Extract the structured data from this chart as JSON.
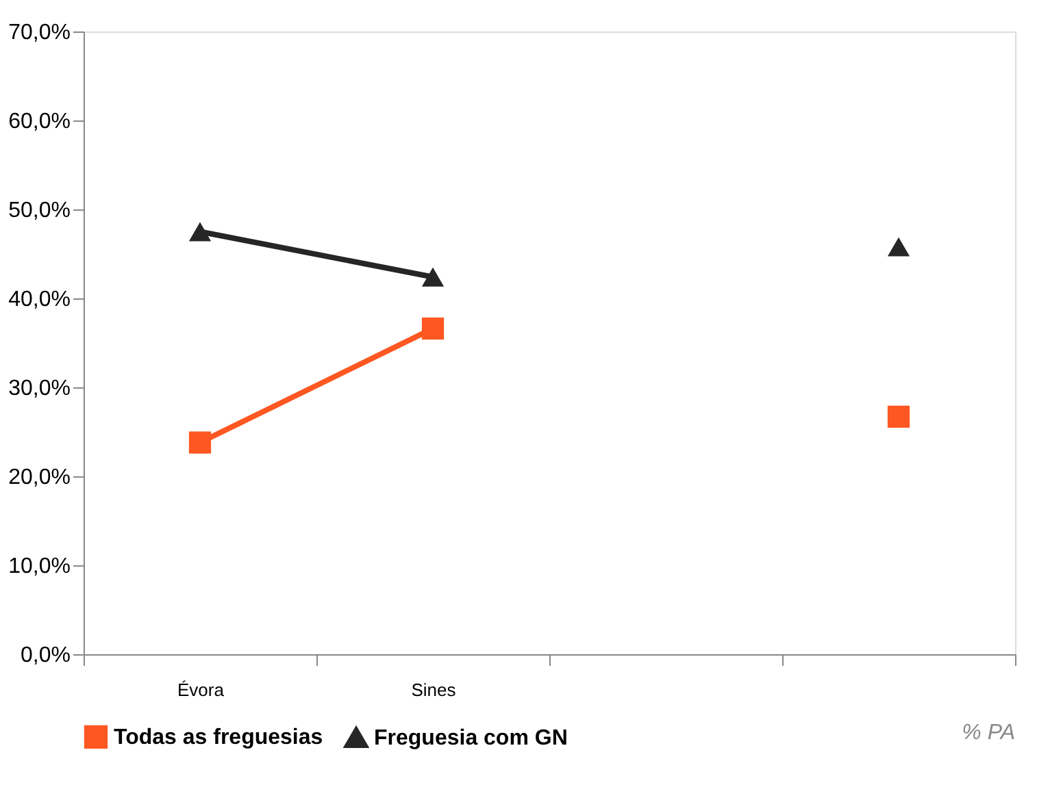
{
  "chart_data": {
    "type": "line",
    "categories": [
      "Évora",
      "Sines",
      null,
      null
    ],
    "series": [
      {
        "name": "Todas as freguesias",
        "color": "#fe5722",
        "marker": "square",
        "values": [
          23.8,
          36.6,
          null,
          26.7
        ]
      },
      {
        "name": "Freguesia com GN",
        "color": "#262626",
        "marker": "triangle",
        "values": [
          47.5,
          42.4,
          null,
          45.8
        ]
      }
    ],
    "ylim": [
      0,
      70
    ],
    "yticks": [
      {
        "value": 0,
        "label": "0,0%"
      },
      {
        "value": 10,
        "label": "10,0%"
      },
      {
        "value": 20,
        "label": "20,0%"
      },
      {
        "value": 30,
        "label": "30,0%"
      },
      {
        "value": 40,
        "label": "40,0%"
      },
      {
        "value": 50,
        "label": "50,0%"
      },
      {
        "value": 60,
        "label": "60,0%"
      },
      {
        "value": 70,
        "label": "70,0%"
      }
    ],
    "grid": false,
    "legend": "bottom",
    "line_style": "solid",
    "annotations": [
      "% PA"
    ]
  }
}
